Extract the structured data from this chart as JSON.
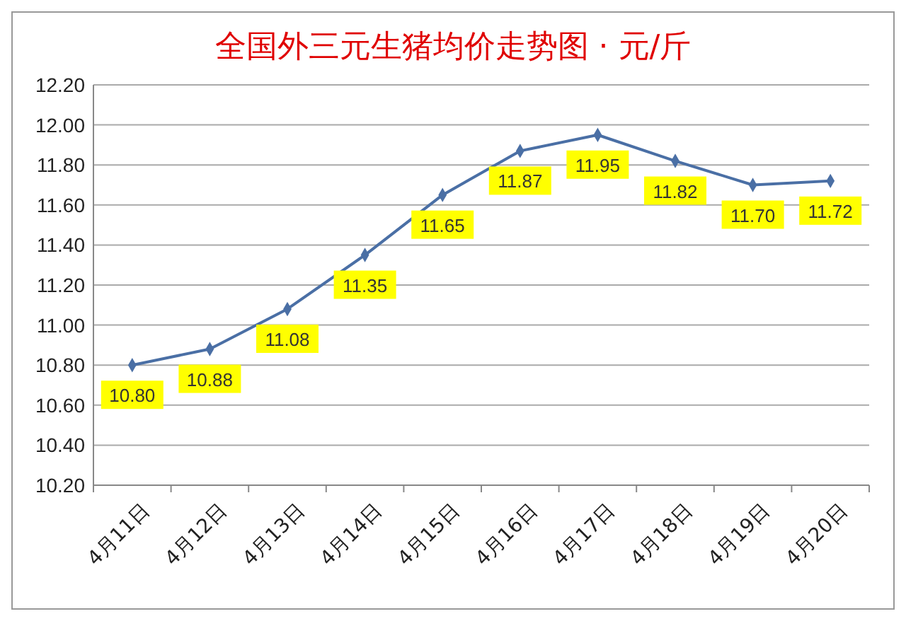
{
  "chart_data": {
    "type": "line",
    "title": "全国外三元生猪均价走势图 · 元/斤",
    "categories": [
      "4月11日",
      "4月12日",
      "4月13日",
      "4月14日",
      "4月15日",
      "4月16日",
      "4月17日",
      "4月18日",
      "4月19日",
      "4月20日"
    ],
    "series": [
      {
        "color": "#4a6fa5",
        "values": [
          10.8,
          10.88,
          11.08,
          11.35,
          11.65,
          11.87,
          11.95,
          11.82,
          11.7,
          11.72
        ],
        "value_labels": [
          "10.80",
          "10.88",
          "11.08",
          "11.35",
          "11.65",
          "11.87",
          "11.95",
          "11.82",
          "11.70",
          "11.72"
        ]
      }
    ],
    "ylim": [
      10.2,
      12.2
    ],
    "yticks": [
      {
        "value": 10.2,
        "label": "10.20"
      },
      {
        "value": 10.4,
        "label": "10.40"
      },
      {
        "value": 10.6,
        "label": "10.60"
      },
      {
        "value": 10.8,
        "label": "10.80"
      },
      {
        "value": 11.0,
        "label": "11.00"
      },
      {
        "value": 11.2,
        "label": "11.20"
      },
      {
        "value": 11.4,
        "label": "11.40"
      },
      {
        "value": 11.6,
        "label": "11.60"
      },
      {
        "value": 11.8,
        "label": "11.80"
      },
      {
        "value": 12.0,
        "label": "12.00"
      },
      {
        "value": 12.2,
        "label": "12.20"
      }
    ],
    "grid": "y",
    "marker": "diamond"
  }
}
